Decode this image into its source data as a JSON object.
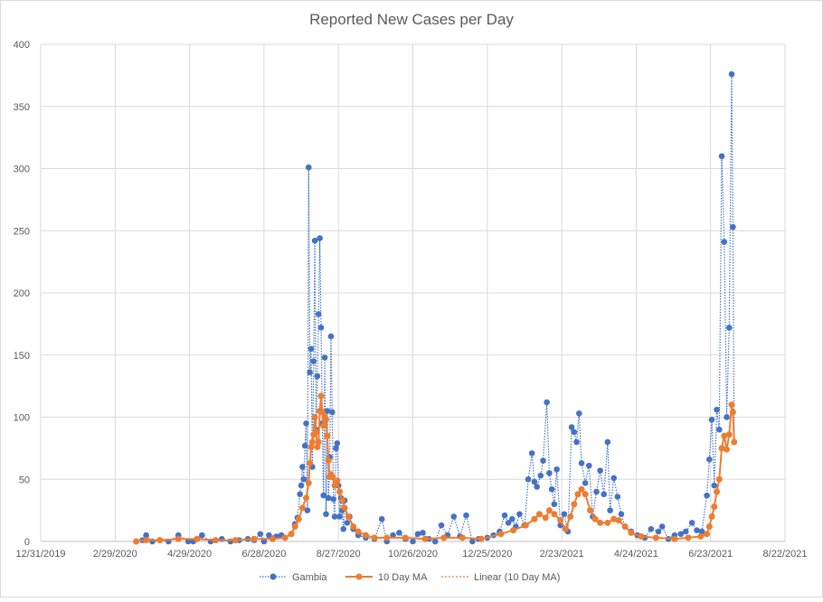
{
  "chart_data": {
    "type": "line",
    "title": "Reported New Cases per Day",
    "xlabel": "",
    "ylabel": "",
    "ylim": [
      0,
      400
    ],
    "yticks": [
      0,
      50,
      100,
      150,
      200,
      250,
      300,
      350,
      400
    ],
    "xlim": [
      "2019-12-31",
      "2021-08-22"
    ],
    "xticks": [
      "12/31/2019",
      "2/29/2020",
      "4/29/2020",
      "6/28/2020",
      "8/27/2020",
      "10/26/2020",
      "12/25/2020",
      "2/23/2021",
      "4/24/2021",
      "6/23/2021",
      "8/22/2021"
    ],
    "grid": true,
    "legend_position": "bottom",
    "series": [
      {
        "name": "Gambia",
        "color": "#4472C4",
        "style": "dotted line with markers",
        "points": [
          [
            "2020-03-17",
            0
          ],
          [
            "2020-03-22",
            1
          ],
          [
            "2020-03-25",
            5
          ],
          [
            "2020-03-30",
            0
          ],
          [
            "2020-04-05",
            1
          ],
          [
            "2020-04-12",
            0
          ],
          [
            "2020-04-20",
            5
          ],
          [
            "2020-04-28",
            0
          ],
          [
            "2020-05-02",
            0
          ],
          [
            "2020-05-09",
            5
          ],
          [
            "2020-05-16",
            0
          ],
          [
            "2020-05-20",
            1
          ],
          [
            "2020-05-25",
            2
          ],
          [
            "2020-06-01",
            0
          ],
          [
            "2020-06-08",
            1
          ],
          [
            "2020-06-15",
            2
          ],
          [
            "2020-06-20",
            1
          ],
          [
            "2020-06-25",
            6
          ],
          [
            "2020-06-28",
            0
          ],
          [
            "2020-07-02",
            5
          ],
          [
            "2020-07-08",
            4
          ],
          [
            "2020-07-12",
            5
          ],
          [
            "2020-07-15",
            3
          ],
          [
            "2020-07-20",
            6
          ],
          [
            "2020-07-23",
            14
          ],
          [
            "2020-07-25",
            19
          ],
          [
            "2020-07-27",
            38
          ],
          [
            "2020-07-28",
            45
          ],
          [
            "2020-07-29",
            60
          ],
          [
            "2020-07-30",
            50
          ],
          [
            "2020-07-31",
            77
          ],
          [
            "2020-08-01",
            95
          ],
          [
            "2020-08-02",
            25
          ],
          [
            "2020-08-03",
            301
          ],
          [
            "2020-08-04",
            136
          ],
          [
            "2020-08-05",
            155
          ],
          [
            "2020-08-06",
            60
          ],
          [
            "2020-08-07",
            145
          ],
          [
            "2020-08-08",
            242
          ],
          [
            "2020-08-09",
            90
          ],
          [
            "2020-08-10",
            133
          ],
          [
            "2020-08-11",
            183
          ],
          [
            "2020-08-12",
            244
          ],
          [
            "2020-08-13",
            172
          ],
          [
            "2020-08-14",
            95
          ],
          [
            "2020-08-15",
            37
          ],
          [
            "2020-08-16",
            148
          ],
          [
            "2020-08-17",
            22
          ],
          [
            "2020-08-18",
            105
          ],
          [
            "2020-08-19",
            35
          ],
          [
            "2020-08-20",
            68
          ],
          [
            "2020-08-21",
            165
          ],
          [
            "2020-08-22",
            104
          ],
          [
            "2020-08-23",
            34
          ],
          [
            "2020-08-24",
            20
          ],
          [
            "2020-08-25",
            75
          ],
          [
            "2020-08-26",
            79
          ],
          [
            "2020-08-27",
            45
          ],
          [
            "2020-08-28",
            20
          ],
          [
            "2020-08-29",
            35
          ],
          [
            "2020-08-30",
            25
          ],
          [
            "2020-08-31",
            10
          ],
          [
            "2020-09-01",
            33
          ],
          [
            "2020-09-03",
            15
          ],
          [
            "2020-09-05",
            20
          ],
          [
            "2020-09-08",
            10
          ],
          [
            "2020-09-12",
            5
          ],
          [
            "2020-09-18",
            3
          ],
          [
            "2020-09-25",
            2
          ],
          [
            "2020-10-01",
            18
          ],
          [
            "2020-10-05",
            0
          ],
          [
            "2020-10-10",
            5
          ],
          [
            "2020-10-15",
            7
          ],
          [
            "2020-10-20",
            2
          ],
          [
            "2020-10-26",
            0
          ],
          [
            "2020-10-30",
            6
          ],
          [
            "2020-11-03",
            7
          ],
          [
            "2020-11-08",
            2
          ],
          [
            "2020-11-13",
            0
          ],
          [
            "2020-11-18",
            13
          ],
          [
            "2020-11-23",
            5
          ],
          [
            "2020-11-28",
            20
          ],
          [
            "2020-12-03",
            4
          ],
          [
            "2020-12-08",
            21
          ],
          [
            "2020-12-13",
            0
          ],
          [
            "2020-12-18",
            2
          ],
          [
            "2020-12-25",
            3
          ],
          [
            "2020-12-30",
            5
          ],
          [
            "2021-01-04",
            8
          ],
          [
            "2021-01-08",
            21
          ],
          [
            "2021-01-11",
            15
          ],
          [
            "2021-01-14",
            18
          ],
          [
            "2021-01-17",
            12
          ],
          [
            "2021-01-20",
            22
          ],
          [
            "2021-01-24",
            13
          ],
          [
            "2021-01-27",
            50
          ],
          [
            "2021-01-30",
            71
          ],
          [
            "2021-02-01",
            48
          ],
          [
            "2021-02-03",
            44
          ],
          [
            "2021-02-06",
            53
          ],
          [
            "2021-02-08",
            65
          ],
          [
            "2021-02-11",
            112
          ],
          [
            "2021-02-13",
            55
          ],
          [
            "2021-02-15",
            42
          ],
          [
            "2021-02-17",
            30
          ],
          [
            "2021-02-19",
            58
          ],
          [
            "2021-02-22",
            13
          ],
          [
            "2021-02-25",
            22
          ],
          [
            "2021-02-28",
            8
          ],
          [
            "2021-03-03",
            92
          ],
          [
            "2021-03-05",
            88
          ],
          [
            "2021-03-07",
            80
          ],
          [
            "2021-03-09",
            103
          ],
          [
            "2021-03-11",
            63
          ],
          [
            "2021-03-14",
            47
          ],
          [
            "2021-03-17",
            61
          ],
          [
            "2021-03-20",
            20
          ],
          [
            "2021-03-23",
            40
          ],
          [
            "2021-03-26",
            57
          ],
          [
            "2021-03-29",
            38
          ],
          [
            "2021-04-01",
            80
          ],
          [
            "2021-04-03",
            25
          ],
          [
            "2021-04-06",
            51
          ],
          [
            "2021-04-09",
            36
          ],
          [
            "2021-04-12",
            22
          ],
          [
            "2021-04-15",
            12
          ],
          [
            "2021-04-20",
            8
          ],
          [
            "2021-04-25",
            5
          ],
          [
            "2021-05-01",
            3
          ],
          [
            "2021-05-06",
            10
          ],
          [
            "2021-05-12",
            8
          ],
          [
            "2021-05-15",
            12
          ],
          [
            "2021-05-20",
            2
          ],
          [
            "2021-05-25",
            5
          ],
          [
            "2021-05-30",
            6
          ],
          [
            "2021-06-03",
            8
          ],
          [
            "2021-06-08",
            15
          ],
          [
            "2021-06-12",
            9
          ],
          [
            "2021-06-16",
            8
          ],
          [
            "2021-06-20",
            37
          ],
          [
            "2021-06-22",
            66
          ],
          [
            "2021-06-24",
            98
          ],
          [
            "2021-06-26",
            45
          ],
          [
            "2021-06-28",
            106
          ],
          [
            "2021-06-30",
            90
          ],
          [
            "2021-07-02",
            310
          ],
          [
            "2021-07-04",
            241
          ],
          [
            "2021-07-06",
            100
          ],
          [
            "2021-07-08",
            172
          ],
          [
            "2021-07-10",
            376
          ],
          [
            "2021-07-11",
            253
          ],
          [
            "2021-07-12",
            80
          ]
        ]
      },
      {
        "name": "10 Day MA",
        "color": "#ED7D31",
        "style": "solid line with markers",
        "points": [
          [
            "2020-03-17",
            0
          ],
          [
            "2020-03-25",
            1
          ],
          [
            "2020-04-05",
            1
          ],
          [
            "2020-04-20",
            2
          ],
          [
            "2020-05-05",
            2
          ],
          [
            "2020-05-20",
            1
          ],
          [
            "2020-06-05",
            1
          ],
          [
            "2020-06-20",
            2
          ],
          [
            "2020-07-05",
            2
          ],
          [
            "2020-07-15",
            3
          ],
          [
            "2020-07-20",
            6
          ],
          [
            "2020-07-23",
            12
          ],
          [
            "2020-07-26",
            18
          ],
          [
            "2020-07-29",
            27
          ],
          [
            "2020-08-01",
            35
          ],
          [
            "2020-08-03",
            47
          ],
          [
            "2020-08-04",
            63
          ],
          [
            "2020-08-05",
            76
          ],
          [
            "2020-08-06",
            80
          ],
          [
            "2020-08-07",
            86
          ],
          [
            "2020-08-08",
            100
          ],
          [
            "2020-08-09",
            88
          ],
          [
            "2020-08-10",
            76
          ],
          [
            "2020-08-11",
            80
          ],
          [
            "2020-08-12",
            105
          ],
          [
            "2020-08-13",
            117
          ],
          [
            "2020-08-14",
            104
          ],
          [
            "2020-08-15",
            93
          ],
          [
            "2020-08-16",
            100
          ],
          [
            "2020-08-17",
            98
          ],
          [
            "2020-08-18",
            85
          ],
          [
            "2020-08-19",
            65
          ],
          [
            "2020-08-20",
            52
          ],
          [
            "2020-08-21",
            54
          ],
          [
            "2020-08-22",
            52
          ],
          [
            "2020-08-24",
            45
          ],
          [
            "2020-08-26",
            49
          ],
          [
            "2020-08-28",
            40
          ],
          [
            "2020-08-30",
            33
          ],
          [
            "2020-09-01",
            27
          ],
          [
            "2020-09-04",
            20
          ],
          [
            "2020-09-08",
            12
          ],
          [
            "2020-09-12",
            8
          ],
          [
            "2020-09-18",
            5
          ],
          [
            "2020-09-25",
            3
          ],
          [
            "2020-10-05",
            3
          ],
          [
            "2020-10-20",
            3
          ],
          [
            "2020-11-05",
            2
          ],
          [
            "2020-11-20",
            3
          ],
          [
            "2020-12-05",
            3
          ],
          [
            "2020-12-20",
            2
          ],
          [
            "2021-01-05",
            6
          ],
          [
            "2021-01-15",
            9
          ],
          [
            "2021-01-25",
            13
          ],
          [
            "2021-02-01",
            18
          ],
          [
            "2021-02-05",
            22
          ],
          [
            "2021-02-10",
            19
          ],
          [
            "2021-02-13",
            25
          ],
          [
            "2021-02-17",
            22
          ],
          [
            "2021-02-22",
            17
          ],
          [
            "2021-02-26",
            10
          ],
          [
            "2021-03-02",
            20
          ],
          [
            "2021-03-05",
            30
          ],
          [
            "2021-03-08",
            38
          ],
          [
            "2021-03-11",
            42
          ],
          [
            "2021-03-14",
            38
          ],
          [
            "2021-03-18",
            25
          ],
          [
            "2021-03-22",
            18
          ],
          [
            "2021-03-26",
            15
          ],
          [
            "2021-04-01",
            15
          ],
          [
            "2021-04-06",
            18
          ],
          [
            "2021-04-10",
            17
          ],
          [
            "2021-04-15",
            12
          ],
          [
            "2021-04-20",
            7
          ],
          [
            "2021-04-28",
            4
          ],
          [
            "2021-05-10",
            3
          ],
          [
            "2021-05-25",
            2
          ],
          [
            "2021-06-05",
            3
          ],
          [
            "2021-06-15",
            4
          ],
          [
            "2021-06-20",
            6
          ],
          [
            "2021-06-22",
            12
          ],
          [
            "2021-06-24",
            20
          ],
          [
            "2021-06-26",
            28
          ],
          [
            "2021-06-28",
            40
          ],
          [
            "2021-06-30",
            50
          ],
          [
            "2021-07-02",
            75
          ],
          [
            "2021-07-04",
            85
          ],
          [
            "2021-07-06",
            74
          ],
          [
            "2021-07-08",
            86
          ],
          [
            "2021-07-10",
            110
          ],
          [
            "2021-07-11",
            104
          ],
          [
            "2021-07-12",
            80
          ]
        ]
      },
      {
        "name": "Linear (10 Day MA)",
        "color": "#ED7D31",
        "style": "dotted trendline",
        "points": []
      }
    ]
  }
}
